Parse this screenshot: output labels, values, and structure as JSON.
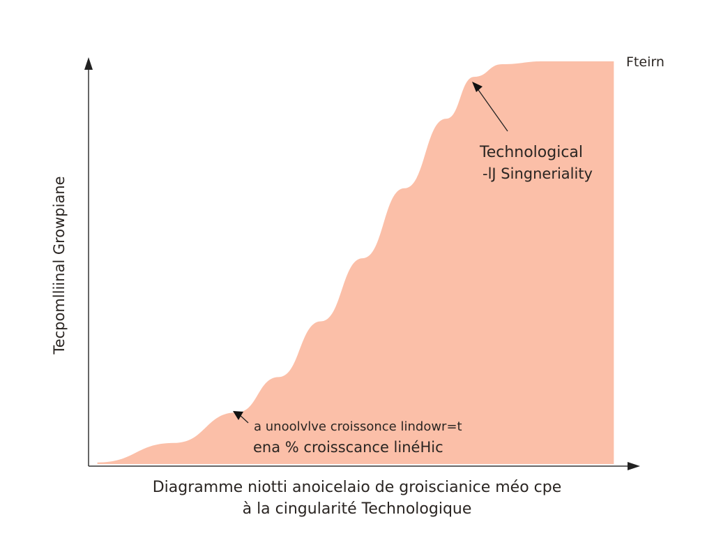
{
  "chart_data": {
    "type": "area",
    "title_lines": [
      "Diagramme niotti anoicelaio de groiscianice méo cpe",
      "à la  cingularité Technologique"
    ],
    "xlabel": "Fteirn",
    "ylabel": "Tecpomlliinal Growpiane",
    "grid": false,
    "xlim": [
      0,
      100
    ],
    "ylim": [
      0,
      100
    ],
    "fill_color": "#fbbfa8",
    "points": [
      [
        1.6,
        0.9
      ],
      [
        15.6,
        5.7
      ],
      [
        27.0,
        13.2
      ],
      [
        34.6,
        21.9
      ],
      [
        42.3,
        35.6
      ],
      [
        49.9,
        51.1
      ],
      [
        57.5,
        68.3
      ],
      [
        65.1,
        85.4
      ],
      [
        70.2,
        95.7
      ],
      [
        75.3,
        98.8
      ],
      [
        82.9,
        99.5
      ],
      [
        95.6,
        99.5
      ]
    ],
    "annotations": [
      {
        "lines": [
          "Technological",
          "-lJ Singneriality"
        ],
        "at": [
          70.2,
          93.5
        ]
      },
      {
        "lines": [
          "a unoolvlve croissonce lindowr=t",
          "ena % croisscance linéHic"
        ],
        "at": [
          26.5,
          13.5
        ]
      }
    ]
  }
}
